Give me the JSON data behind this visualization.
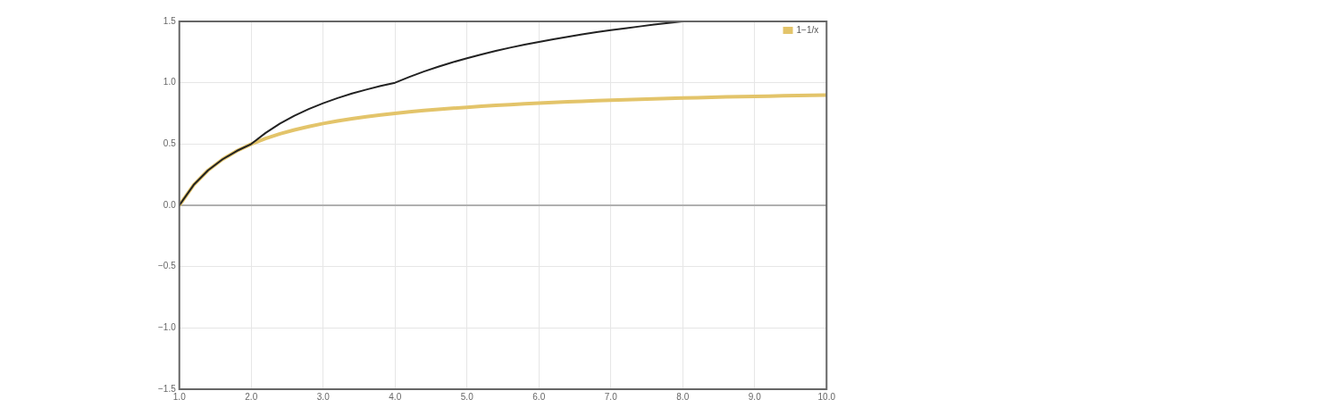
{
  "chart_data": {
    "type": "line",
    "xlim": [
      1,
      10
    ],
    "ylim": [
      -1.5,
      1.5
    ],
    "xticks": [
      {
        "value": 1,
        "label": "1.0"
      },
      {
        "value": 2,
        "label": "2.0"
      },
      {
        "value": 3,
        "label": "3.0"
      },
      {
        "value": 4,
        "label": "4.0"
      },
      {
        "value": 5,
        "label": "5.0"
      },
      {
        "value": 6,
        "label": "6.0"
      },
      {
        "value": 7,
        "label": "7.0"
      },
      {
        "value": 8,
        "label": "8.0"
      },
      {
        "value": 9,
        "label": "9.0"
      },
      {
        "value": 10,
        "label": "10.0"
      }
    ],
    "yticks": [
      {
        "value": -1.5,
        "label": "−1.5"
      },
      {
        "value": -1,
        "label": "−1.0"
      },
      {
        "value": -0.5,
        "label": "−0.5"
      },
      {
        "value": 0,
        "label": "0.0"
      },
      {
        "value": 0.5,
        "label": "0.5"
      },
      {
        "value": 1,
        "label": "1.0"
      },
      {
        "value": 1.5,
        "label": "1.5"
      }
    ],
    "grid": true,
    "legend": "top right",
    "marker": "none",
    "ref_lines": [
      {
        "axis": "y",
        "value": 0,
        "color": "#b0b0b0"
      }
    ],
    "series": [
      {
        "name": "1−1/x",
        "color": "#e3c46a",
        "x": [
          1,
          1.2,
          1.4,
          1.6,
          1.8,
          2,
          2.2,
          2.4,
          2.6,
          2.8,
          3,
          3.2,
          3.4,
          3.6,
          3.8,
          4,
          4.2,
          4.4,
          4.6,
          4.8,
          5,
          5.2,
          5.4,
          5.6,
          5.8,
          6,
          6.2,
          6.4,
          6.6,
          6.8,
          7,
          7.2,
          7.4,
          7.6,
          7.8,
          8,
          8.2,
          8.4,
          8.6,
          8.8,
          9,
          9.2,
          9.4,
          9.6,
          9.8,
          10
        ],
        "values": [
          0,
          0.167,
          0.286,
          0.375,
          0.444,
          0.5,
          0.545,
          0.583,
          0.615,
          0.643,
          0.667,
          0.688,
          0.706,
          0.722,
          0.737,
          0.75,
          0.762,
          0.773,
          0.783,
          0.792,
          0.8,
          0.808,
          0.815,
          0.821,
          0.828,
          0.833,
          0.839,
          0.844,
          0.848,
          0.853,
          0.857,
          0.861,
          0.865,
          0.868,
          0.872,
          0.875,
          0.878,
          0.881,
          0.884,
          0.886,
          0.889,
          0.891,
          0.894,
          0.896,
          0.898,
          0.9
        ]
      },
      {
        "color": "#222222",
        "x": [
          1,
          1.2,
          1.4,
          1.6,
          1.8,
          2,
          2.2,
          2.4,
          2.6,
          2.8,
          3,
          3.2,
          3.4,
          3.6,
          3.8,
          4,
          4.2,
          4.4,
          4.6,
          4.8,
          5,
          5.2,
          5.4,
          5.6,
          5.8,
          6,
          6.2,
          6.4,
          6.6,
          6.8,
          7,
          7.2,
          7.4,
          7.6,
          7.8,
          8
        ],
        "values": [
          0,
          0.167,
          0.286,
          0.375,
          0.444,
          0.5,
          0.591,
          0.667,
          0.731,
          0.786,
          0.833,
          0.875,
          0.912,
          0.944,
          0.974,
          1.0,
          1.048,
          1.091,
          1.13,
          1.167,
          1.2,
          1.231,
          1.259,
          1.286,
          1.31,
          1.333,
          1.355,
          1.375,
          1.394,
          1.412,
          1.429,
          1.444,
          1.459,
          1.474,
          1.487,
          1.5
        ]
      }
    ]
  }
}
